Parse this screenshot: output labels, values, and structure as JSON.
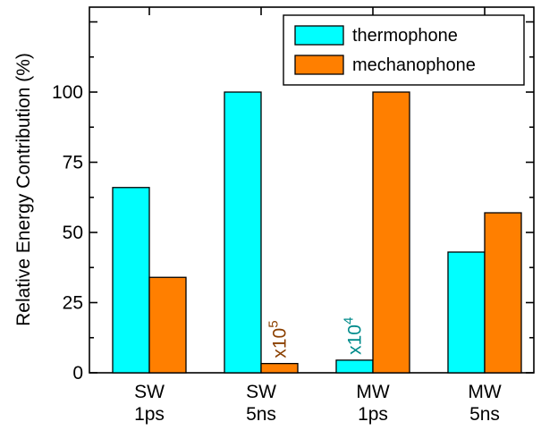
{
  "chart_data": {
    "type": "bar",
    "title": "",
    "xlabel": "",
    "ylabel": "Relative Energy Contribution (%)",
    "ylim": [
      0,
      130
    ],
    "yticks": [
      0,
      25,
      50,
      75,
      100
    ],
    "grid": false,
    "legend_position": "top-right",
    "categories": [
      {
        "line1": "SW",
        "line2": "1ps"
      },
      {
        "line1": "SW",
        "line2": "5ns"
      },
      {
        "line1": "MW",
        "line2": "1ps"
      },
      {
        "line1": "MW",
        "line2": "5ns"
      }
    ],
    "series": [
      {
        "name": "thermophone",
        "color": "#00ffff",
        "values": [
          66,
          100,
          4.5,
          43
        ]
      },
      {
        "name": "mechanophone",
        "color": "#ff7f00",
        "values": [
          34,
          3.3,
          100,
          57
        ]
      }
    ],
    "annotations": [
      {
        "category_index": 1,
        "series_index": 1,
        "base": "x10",
        "exponent": "5",
        "color": "#8b4000"
      },
      {
        "category_index": 2,
        "series_index": 0,
        "base": "x10",
        "exponent": "4",
        "color": "#008b8b"
      }
    ]
  }
}
